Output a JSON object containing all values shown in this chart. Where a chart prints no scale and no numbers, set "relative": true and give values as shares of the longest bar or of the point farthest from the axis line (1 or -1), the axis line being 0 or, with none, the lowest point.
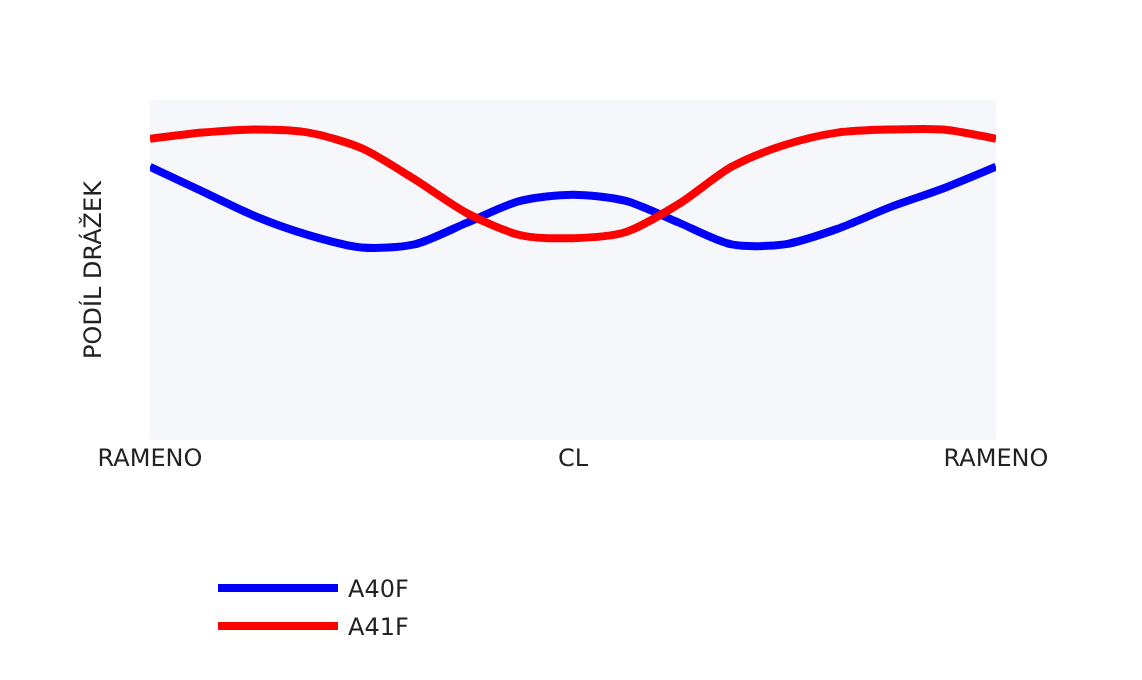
{
  "chart_data": {
    "type": "line",
    "relative": true,
    "ylabel": "PODÍL DRÁŽEK",
    "categories": [
      "RAMENO",
      null,
      null,
      null,
      null,
      null,
      null,
      null,
      "CL",
      null,
      null,
      null,
      null,
      null,
      null,
      null,
      "RAMENO"
    ],
    "series": [
      {
        "name": "A40F",
        "color": "#0000ff",
        "values": [
          0.88,
          0.8,
          0.72,
          0.66,
          0.62,
          0.63,
          0.7,
          0.77,
          0.79,
          0.77,
          0.7,
          0.63,
          0.63,
          0.68,
          0.75,
          0.81,
          0.88
        ]
      },
      {
        "name": "A41F",
        "color": "#ff0000",
        "values": [
          0.97,
          0.99,
          1.0,
          0.99,
          0.94,
          0.84,
          0.73,
          0.66,
          0.65,
          0.67,
          0.76,
          0.88,
          0.95,
          0.99,
          1.0,
          1.0,
          0.97
        ]
      }
    ],
    "grid": false,
    "legend": "bottom",
    "marker": "none",
    "line_style": "solid"
  }
}
